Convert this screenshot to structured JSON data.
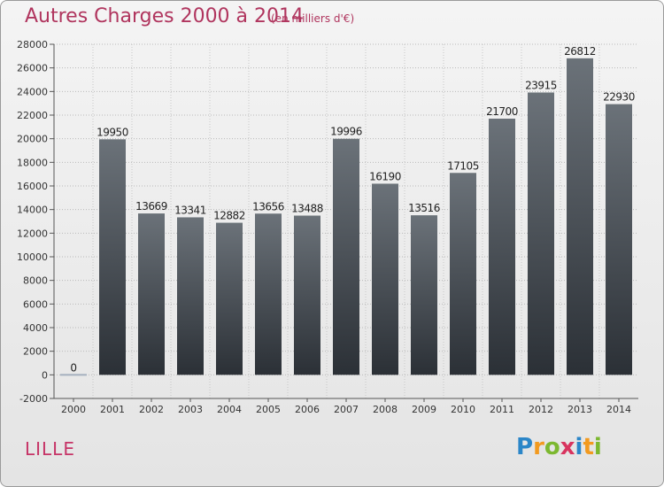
{
  "title": "Autres Charges 2000 à 2014",
  "subtitle": "(en milliers d'€)",
  "city": "LILLE",
  "logo_text": "Proxiti",
  "colors": {
    "title": "#b0355e",
    "city": "#c63366",
    "bar_top": "#6b7279",
    "bar_bottom": "#2b3036",
    "zero_bar": "#a5b0bf"
  },
  "chart_data": {
    "type": "bar",
    "categories": [
      "2000",
      "2001",
      "2002",
      "2003",
      "2004",
      "2005",
      "2006",
      "2007",
      "2008",
      "2009",
      "2010",
      "2011",
      "2012",
      "2013",
      "2014"
    ],
    "values": [
      0,
      19950,
      13669,
      13341,
      12882,
      13656,
      13488,
      19996,
      16190,
      13516,
      17105,
      21700,
      23915,
      26812,
      22930
    ],
    "ylim": [
      -2000,
      28000
    ],
    "yticks": [
      -2000,
      0,
      2000,
      4000,
      6000,
      8000,
      10000,
      12000,
      14000,
      16000,
      18000,
      20000,
      22000,
      24000,
      26000,
      28000
    ],
    "grid": "horizontal dotted",
    "title": "Autres Charges 2000 à 2014",
    "xlabel": "",
    "ylabel": ""
  }
}
